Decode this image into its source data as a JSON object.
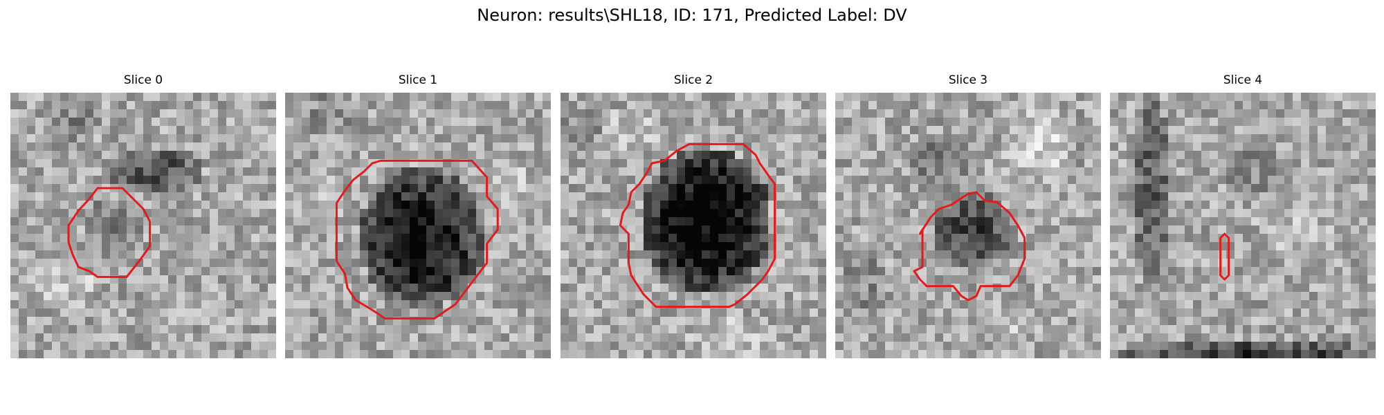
{
  "title": "Neuron: results\\SHL18, ID: 171, Predicted Label: DV",
  "panels": [
    {
      "title": "Slice 0",
      "image": "grayscale-microscopy-tile",
      "contour": "red-outline",
      "contour_color": "#e41a1c"
    },
    {
      "title": "Slice 1",
      "image": "grayscale-microscopy-tile",
      "contour": "red-outline",
      "contour_color": "#e41a1c"
    },
    {
      "title": "Slice 2",
      "image": "grayscale-microscopy-tile",
      "contour": "red-outline",
      "contour_color": "#e41a1c"
    },
    {
      "title": "Slice 3",
      "image": "grayscale-microscopy-tile",
      "contour": "red-outline",
      "contour_color": "#e41a1c"
    },
    {
      "title": "Slice 4",
      "image": "grayscale-microscopy-tile",
      "contour": "red-outline",
      "contour_color": "#e41a1c"
    }
  ]
}
